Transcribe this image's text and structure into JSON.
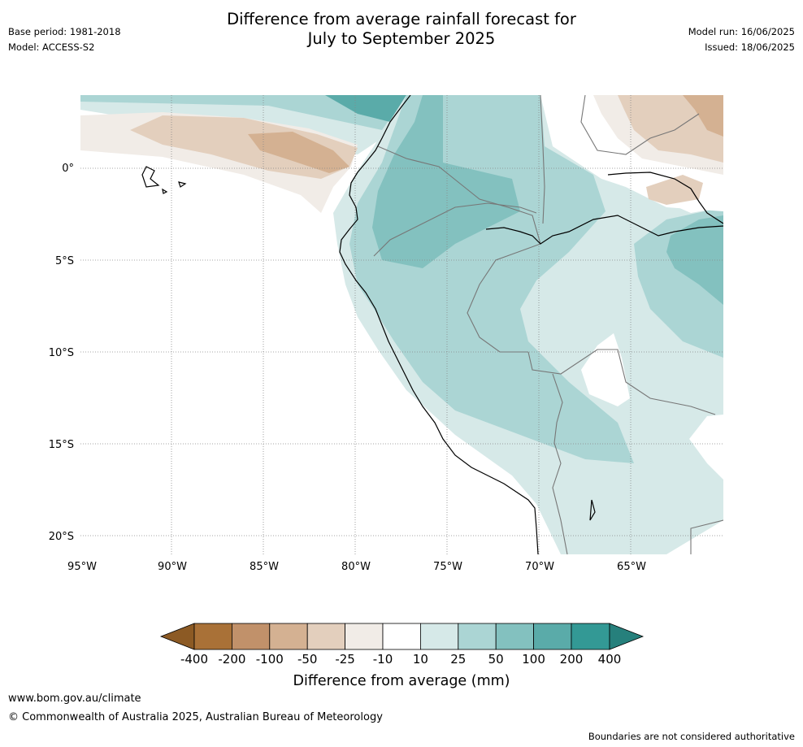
{
  "header": {
    "title_line1": "Difference from average rainfall forecast for",
    "title_line2": "July to September 2025",
    "base_period": "Base period: 1981-2018",
    "model": "Model: ACCESS-S2",
    "model_run": "Model run: 16/06/2025",
    "issued": "Issued: 18/06/2025"
  },
  "map": {
    "lat_labels": [
      "0°",
      "5°S",
      "10°S",
      "15°S",
      "20°S"
    ],
    "lon_labels": [
      "95°W",
      "90°W",
      "85°W",
      "80°W",
      "75°W",
      "70°W",
      "65°W"
    ],
    "land_outline_color": "#000000",
    "border_color": "#777777",
    "grid_color": "#888888"
  },
  "legend": {
    "title": "Difference from average (mm)",
    "tick_labels": [
      "-400",
      "-200",
      "-100",
      "-50",
      "-25",
      "-10",
      "10",
      "25",
      "50",
      "100",
      "200",
      "400"
    ],
    "colors": {
      "below_min": "#8c5a24",
      "bins": [
        "#a97137",
        "#c1916a",
        "#d4b192",
        "#e3cfbd",
        "#f1ece7",
        "#ffffff",
        "#d6e9e8",
        "#abd5d4",
        "#83c1bf",
        "#5aaba9",
        "#339995"
      ],
      "above_max": "#26807c"
    }
  },
  "footer": {
    "website": "www.bom.gov.au/climate",
    "copyright": "© Commonwealth of Australia 2025, Australian Bureau of Meteorology",
    "disclaimer": "Boundaries are not considered authoritative"
  }
}
